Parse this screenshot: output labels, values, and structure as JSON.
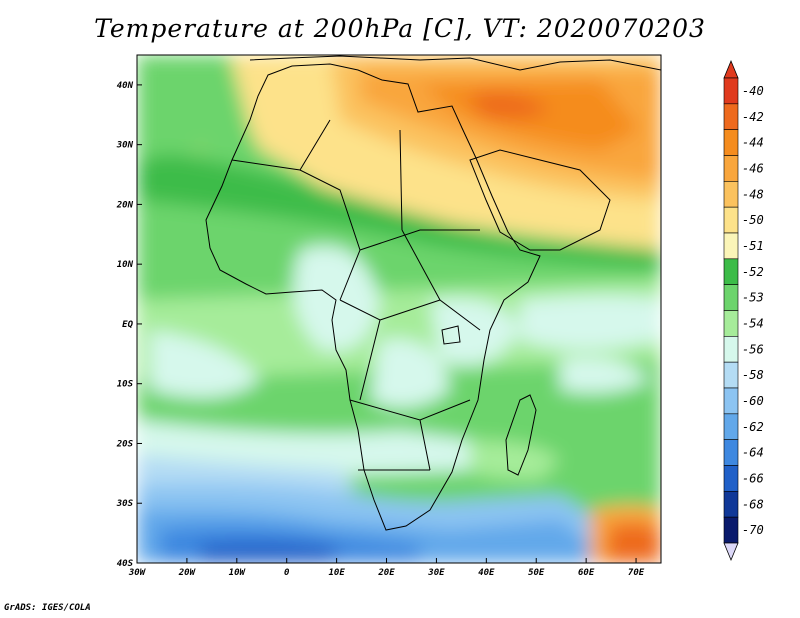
{
  "title": "Temperature at 200hPa [C], VT: 2020070203",
  "footer": "GrADS: IGES/COLA",
  "map": {
    "projection": "lat-lon",
    "lon_range": [
      -30,
      75
    ],
    "lat_range": [
      -40,
      45
    ],
    "x_ticks": [
      {
        "lon": -30,
        "label": "30W"
      },
      {
        "lon": -20,
        "label": "20W"
      },
      {
        "lon": -10,
        "label": "10W"
      },
      {
        "lon": 0,
        "label": "0"
      },
      {
        "lon": 10,
        "label": "10E"
      },
      {
        "lon": 20,
        "label": "20E"
      },
      {
        "lon": 30,
        "label": "30E"
      },
      {
        "lon": 40,
        "label": "40E"
      },
      {
        "lon": 50,
        "label": "50E"
      },
      {
        "lon": 60,
        "label": "60E"
      },
      {
        "lon": 70,
        "label": "70E"
      }
    ],
    "y_ticks": [
      {
        "lat": 40,
        "label": "40N"
      },
      {
        "lat": 30,
        "label": "30N"
      },
      {
        "lat": 20,
        "label": "20N"
      },
      {
        "lat": 10,
        "label": "10N"
      },
      {
        "lat": 0,
        "label": "EQ"
      },
      {
        "lat": -10,
        "label": "10S"
      },
      {
        "lat": -20,
        "label": "20S"
      },
      {
        "lat": -30,
        "label": "30S"
      },
      {
        "lat": -40,
        "label": "40S"
      }
    ]
  },
  "legend": {
    "levels": [
      {
        "label": "-40",
        "color": "#e03a1e"
      },
      {
        "label": "-42",
        "color": "#ee6a1e"
      },
      {
        "label": "-44",
        "color": "#f58c1e"
      },
      {
        "label": "-46",
        "color": "#f9a63c"
      },
      {
        "label": "-48",
        "color": "#fbc25e"
      },
      {
        "label": "-50",
        "color": "#fde28a"
      },
      {
        "label": "-51",
        "color": "#fbf5b8"
      },
      {
        "label": "-52",
        "color": "#3cbc48"
      },
      {
        "label": "-53",
        "color": "#6cd46c"
      },
      {
        "label": "-54",
        "color": "#a6ec9a"
      },
      {
        "label": "-56",
        "color": "#d6f8ec"
      },
      {
        "label": "-58",
        "color": "#b4dcf4"
      },
      {
        "label": "-60",
        "color": "#8cc4f2"
      },
      {
        "label": "-62",
        "color": "#62a8ea"
      },
      {
        "label": "-64",
        "color": "#3e88e0"
      },
      {
        "label": "-66",
        "color": "#2060c8"
      },
      {
        "label": "-68",
        "color": "#103898"
      },
      {
        "label": "-70",
        "color": "#0a1a6c"
      }
    ],
    "low_end_color": "#dcd8f8"
  }
}
